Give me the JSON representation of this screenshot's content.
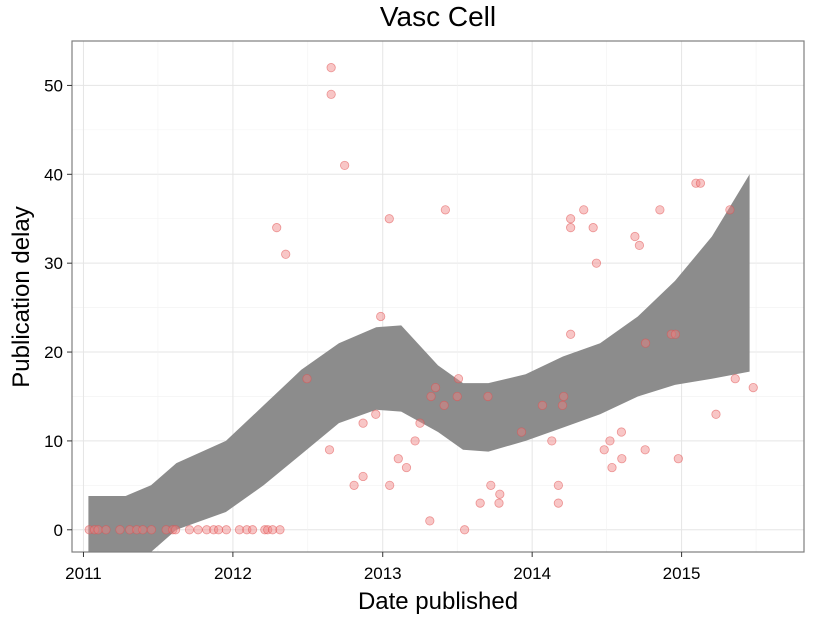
{
  "chart_data": {
    "type": "scatter",
    "title": "Vasc Cell",
    "xlabel": "Date published",
    "ylabel": "Publication delay",
    "x_ticks": [
      "2011",
      "2012",
      "2013",
      "2014",
      "2015"
    ],
    "y_ticks": [
      "0",
      "10",
      "20",
      "30",
      "40",
      "50"
    ],
    "xlim": [
      "2010-12-04",
      "2015-10-27"
    ],
    "ylim": [
      -2.5,
      55
    ],
    "grid": true,
    "point_color": "#f08080",
    "band_color": "#8c8c8c",
    "points": [
      {
        "x": "2011-01-15",
        "y": 0
      },
      {
        "x": "2011-01-28",
        "y": 0
      },
      {
        "x": "2011-02-06",
        "y": 0
      },
      {
        "x": "2011-02-25",
        "y": 0
      },
      {
        "x": "2011-03-31",
        "y": 0
      },
      {
        "x": "2011-04-24",
        "y": 0
      },
      {
        "x": "2011-05-11",
        "y": 0
      },
      {
        "x": "2011-05-26",
        "y": 0
      },
      {
        "x": "2011-06-16",
        "y": 0
      },
      {
        "x": "2011-07-22",
        "y": 0
      },
      {
        "x": "2011-08-07",
        "y": 0
      },
      {
        "x": "2011-08-14",
        "y": 0
      },
      {
        "x": "2011-09-17",
        "y": 0
      },
      {
        "x": "2011-10-08",
        "y": 0
      },
      {
        "x": "2011-10-29",
        "y": 0
      },
      {
        "x": "2011-11-15",
        "y": 0
      },
      {
        "x": "2011-11-27",
        "y": 0
      },
      {
        "x": "2011-12-16",
        "y": 0
      },
      {
        "x": "2012-01-17",
        "y": 0
      },
      {
        "x": "2012-02-04",
        "y": 0
      },
      {
        "x": "2012-02-18",
        "y": 0
      },
      {
        "x": "2012-03-19",
        "y": 0
      },
      {
        "x": "2012-03-26",
        "y": 0
      },
      {
        "x": "2012-04-07",
        "y": 0
      },
      {
        "x": "2012-04-25",
        "y": 0
      },
      {
        "x": "2012-04-17",
        "y": 34
      },
      {
        "x": "2012-05-09",
        "y": 31
      },
      {
        "x": "2012-06-30",
        "y": 17
      },
      {
        "x": "2012-08-28",
        "y": 52
      },
      {
        "x": "2012-08-28",
        "y": 49
      },
      {
        "x": "2012-09-30",
        "y": 41
      },
      {
        "x": "2012-08-24",
        "y": 9
      },
      {
        "x": "2012-10-23",
        "y": 5
      },
      {
        "x": "2012-11-14",
        "y": 6
      },
      {
        "x": "2012-11-14",
        "y": 12
      },
      {
        "x": "2012-12-15",
        "y": 13
      },
      {
        "x": "2012-12-27",
        "y": 24
      },
      {
        "x": "2013-01-17",
        "y": 35
      },
      {
        "x": "2013-01-18",
        "y": 5
      },
      {
        "x": "2013-02-08",
        "y": 8
      },
      {
        "x": "2013-02-28",
        "y": 7
      },
      {
        "x": "2013-03-21",
        "y": 10
      },
      {
        "x": "2013-04-02",
        "y": 12
      },
      {
        "x": "2013-04-29",
        "y": 15
      },
      {
        "x": "2013-04-26",
        "y": 1
      },
      {
        "x": "2013-05-10",
        "y": 16
      },
      {
        "x": "2013-05-31",
        "y": 14
      },
      {
        "x": "2013-06-03",
        "y": 36
      },
      {
        "x": "2013-07-02",
        "y": 15
      },
      {
        "x": "2013-07-05",
        "y": 17
      },
      {
        "x": "2013-07-20",
        "y": 0
      },
      {
        "x": "2013-08-27",
        "y": 3
      },
      {
        "x": "2013-09-15",
        "y": 15
      },
      {
        "x": "2013-09-22",
        "y": 5
      },
      {
        "x": "2013-10-14",
        "y": 4
      },
      {
        "x": "2013-10-12",
        "y": 3
      },
      {
        "x": "2013-12-06",
        "y": 11
      },
      {
        "x": "2014-01-26",
        "y": 14
      },
      {
        "x": "2014-02-18",
        "y": 10
      },
      {
        "x": "2014-03-06",
        "y": 5
      },
      {
        "x": "2014-03-06",
        "y": 3
      },
      {
        "x": "2014-03-16",
        "y": 14
      },
      {
        "x": "2014-03-19",
        "y": 15
      },
      {
        "x": "2014-04-05",
        "y": 35
      },
      {
        "x": "2014-04-05",
        "y": 34
      },
      {
        "x": "2014-04-05",
        "y": 22
      },
      {
        "x": "2014-05-07",
        "y": 36
      },
      {
        "x": "2014-05-30",
        "y": 34
      },
      {
        "x": "2014-06-07",
        "y": 30
      },
      {
        "x": "2014-06-26",
        "y": 9
      },
      {
        "x": "2014-07-10",
        "y": 10
      },
      {
        "x": "2014-07-15",
        "y": 7
      },
      {
        "x": "2014-08-07",
        "y": 11
      },
      {
        "x": "2014-08-08",
        "y": 8
      },
      {
        "x": "2014-09-09",
        "y": 33
      },
      {
        "x": "2014-09-20",
        "y": 32
      },
      {
        "x": "2014-10-05",
        "y": 21
      },
      {
        "x": "2014-10-04",
        "y": 9
      },
      {
        "x": "2014-11-09",
        "y": 36
      },
      {
        "x": "2014-12-07",
        "y": 22
      },
      {
        "x": "2014-12-17",
        "y": 22
      },
      {
        "x": "2014-12-24",
        "y": 8
      },
      {
        "x": "2015-02-05",
        "y": 39
      },
      {
        "x": "2015-02-16",
        "y": 39
      },
      {
        "x": "2015-03-26",
        "y": 13
      },
      {
        "x": "2015-04-29",
        "y": 36
      },
      {
        "x": "2015-05-12",
        "y": 17
      },
      {
        "x": "2015-06-25",
        "y": 16
      }
    ],
    "smooth_band": [
      {
        "x": "2011-01-13",
        "lower": -2.5,
        "upper": 3.8
      },
      {
        "x": "2011-04-14",
        "lower": -2.5,
        "upper": 3.8
      },
      {
        "x": "2011-06-15",
        "lower": -2.5,
        "upper": 5
      },
      {
        "x": "2011-08-16",
        "lower": 0,
        "upper": 7.5
      },
      {
        "x": "2011-12-15",
        "lower": 2,
        "upper": 10
      },
      {
        "x": "2012-03-16",
        "lower": 5,
        "upper": 14
      },
      {
        "x": "2012-06-16",
        "lower": 8.5,
        "upper": 18
      },
      {
        "x": "2012-09-16",
        "lower": 12,
        "upper": 21
      },
      {
        "x": "2012-12-16",
        "lower": 13.5,
        "upper": 22.8
      },
      {
        "x": "2013-02-15",
        "lower": 13.3,
        "upper": 23
      },
      {
        "x": "2013-05-16",
        "lower": 11,
        "upper": 18.5
      },
      {
        "x": "2013-07-16",
        "lower": 9,
        "upper": 16.5
      },
      {
        "x": "2013-09-16",
        "lower": 8.8,
        "upper": 16.5
      },
      {
        "x": "2013-12-16",
        "lower": 10,
        "upper": 17.5
      },
      {
        "x": "2014-03-17",
        "lower": 11.5,
        "upper": 19.5
      },
      {
        "x": "2014-06-16",
        "lower": 13,
        "upper": 21
      },
      {
        "x": "2014-09-16",
        "lower": 15,
        "upper": 24
      },
      {
        "x": "2014-12-16",
        "lower": 16.3,
        "upper": 28
      },
      {
        "x": "2015-03-16",
        "lower": 17,
        "upper": 33
      },
      {
        "x": "2015-06-16",
        "lower": 17.8,
        "upper": 40
      }
    ]
  }
}
